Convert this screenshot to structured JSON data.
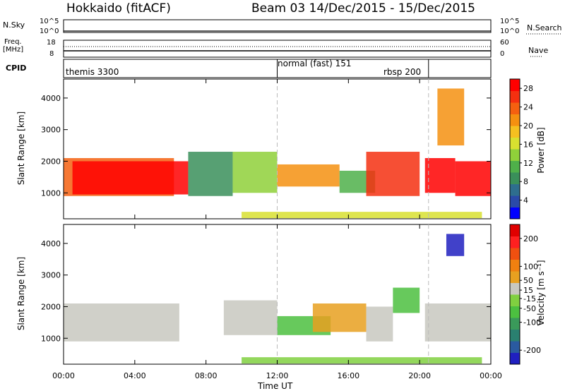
{
  "header": {
    "title": "Hokkaido (fitACF)",
    "beam_date": "Beam 03  14/Dec/2015 - 15/Dec/2015"
  },
  "labels": {
    "nsky": "N.Sky",
    "nsearch": "N.Search",
    "freq": "Freq.",
    "freq_unit": "[MHz]",
    "nave": "Nave",
    "cpid": "CPID",
    "slant_range": "Slant Range [km]",
    "power_label": "Power [dB]",
    "velocity_label": "Velocity [m s⁻¹]",
    "time_label": "Time UT"
  },
  "noise_axes": {
    "left_top": "10^5",
    "left_bottom": "10^0",
    "right_top": "10^5",
    "right_bottom": "10^0"
  },
  "freq_axes": {
    "left_top": "18",
    "left_bottom": "8",
    "right_top": "60",
    "right_bottom": "0"
  },
  "cpid_segments": [
    {
      "label": "themis 3300",
      "start_hr": 0.0
    },
    {
      "label": "normal (fast) 151",
      "start_hr": 12.0
    },
    {
      "label": "rbsp 200",
      "start_hr": 20.5
    }
  ],
  "colors": {
    "power": [
      "#0000ff",
      "#2a4aa8",
      "#2e6e8e",
      "#3a8f5a",
      "#4fb04a",
      "#8fd03a",
      "#d8e030",
      "#f5c020",
      "#f59010",
      "#f56010",
      "#f53010",
      "#ff0000"
    ],
    "velocity": [
      "#2020c0",
      "#2a5aa0",
      "#2a8070",
      "#3a9a5a",
      "#4cc040",
      "#80d040",
      "#c8c8c0",
      "#e8a020",
      "#f08010",
      "#f05010",
      "#ff2020",
      "#e00000"
    ]
  },
  "chart_data": [
    {
      "type": "heatmap",
      "name": "power",
      "ylabel": "Slant Range [km]",
      "x_ticks": [
        "00:00",
        "04:00",
        "08:00",
        "12:00",
        "16:00",
        "20:00",
        "00:00"
      ],
      "x_range_hours": [
        0,
        24
      ],
      "y_ticks": [
        1000,
        2000,
        3000,
        4000
      ],
      "ylim": [
        180,
        4600
      ],
      "colorbar": {
        "label": "Power [dB]",
        "ticks": [
          4,
          8,
          12,
          16,
          20,
          24,
          28
        ],
        "range": [
          0,
          30
        ]
      },
      "regions": [
        {
          "t0": 0.0,
          "t1": 6.2,
          "r0": 900,
          "r1": 2100,
          "value": 24
        },
        {
          "t0": 0.5,
          "t1": 7.0,
          "r0": 950,
          "r1": 2000,
          "value": 28
        },
        {
          "t0": 7.0,
          "t1": 9.5,
          "r0": 900,
          "r1": 2300,
          "value": 8
        },
        {
          "t0": 9.5,
          "t1": 12.0,
          "r0": 1000,
          "r1": 2300,
          "value": 14
        },
        {
          "t0": 12.0,
          "t1": 15.5,
          "r0": 1200,
          "r1": 1900,
          "value": 20
        },
        {
          "t0": 15.5,
          "t1": 17.5,
          "r0": 1000,
          "r1": 1700,
          "value": 12
        },
        {
          "t0": 17.0,
          "t1": 20.0,
          "r0": 900,
          "r1": 2300,
          "value": 26
        },
        {
          "t0": 20.3,
          "t1": 22.0,
          "r0": 1000,
          "r1": 2100,
          "value": 28
        },
        {
          "t0": 22.0,
          "t1": 24.0,
          "r0": 900,
          "r1": 2000,
          "value": 28
        },
        {
          "t0": 10.0,
          "t1": 23.5,
          "r0": 200,
          "r1": 400,
          "value": 16
        },
        {
          "t0": 21.0,
          "t1": 22.5,
          "r0": 2500,
          "r1": 4300,
          "value": 20
        }
      ]
    },
    {
      "type": "heatmap",
      "name": "velocity",
      "ylabel": "Slant Range [km]",
      "xlabel": "Time UT",
      "x_ticks": [
        "00:00",
        "04:00",
        "08:00",
        "12:00",
        "16:00",
        "20:00",
        "00:00"
      ],
      "x_range_hours": [
        0,
        24
      ],
      "y_ticks": [
        1000,
        2000,
        3000,
        4000
      ],
      "ylim": [
        180,
        4600
      ],
      "colorbar": {
        "label": "Velocity [m s⁻¹]",
        "ticks": [
          200,
          100,
          50,
          15,
          -15,
          -50,
          -100,
          -200
        ],
        "range": [
          -250,
          250
        ]
      },
      "regions": [
        {
          "t0": 0.0,
          "t1": 6.5,
          "r0": 900,
          "r1": 2100,
          "value": 0
        },
        {
          "t0": 9.0,
          "t1": 12.0,
          "r0": 1100,
          "r1": 2200,
          "value": 40
        },
        {
          "t0": 12.0,
          "t1": 15.0,
          "r0": 1100,
          "r1": 1700,
          "value": -70
        },
        {
          "t0": 14.0,
          "t1": 17.0,
          "r0": 1200,
          "r1": 2100,
          "value": 80
        },
        {
          "t0": 17.0,
          "t1": 18.5,
          "r0": 900,
          "r1": 2000,
          "value": 40
        },
        {
          "t0": 18.5,
          "t1": 20.0,
          "r0": 1800,
          "r1": 2600,
          "value": -80
        },
        {
          "t0": 20.3,
          "t1": 24.0,
          "r0": 900,
          "r1": 2100,
          "value": 20
        },
        {
          "t0": 21.5,
          "t1": 22.5,
          "r0": 3600,
          "r1": 4300,
          "value": -220
        },
        {
          "t0": 10.0,
          "t1": 23.5,
          "r0": 200,
          "r1": 400,
          "value": -40
        }
      ]
    }
  ]
}
